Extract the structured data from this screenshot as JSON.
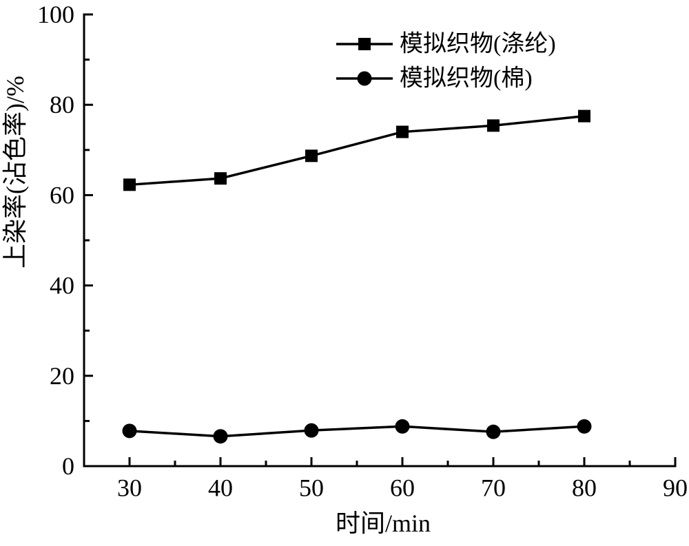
{
  "chart_data": {
    "type": "line",
    "title": "",
    "xlabel": "时间/min",
    "ylabel": "上染率(沾色率)/%",
    "xlim": [
      25,
      90
    ],
    "ylim": [
      0,
      100
    ],
    "x_major_ticks": [
      30,
      40,
      50,
      60,
      70,
      80,
      90
    ],
    "x_minor_step": 5,
    "y_major_ticks": [
      0,
      20,
      40,
      60,
      80,
      100
    ],
    "y_minor_step": 10,
    "grid": false,
    "legend_position": "top-center-inside",
    "line_color": "#000000",
    "background_color": "#ffffff",
    "x": [
      30,
      40,
      50,
      60,
      70,
      80
    ],
    "series": [
      {
        "name": "模拟织物(涤纶)",
        "marker": "square",
        "color": "#000000",
        "values": [
          62.3,
          63.7,
          68.7,
          74.0,
          75.4,
          77.5
        ]
      },
      {
        "name": "模拟织物(棉)",
        "marker": "circle",
        "color": "#000000",
        "values": [
          7.8,
          6.6,
          7.9,
          8.8,
          7.6,
          8.8
        ]
      }
    ]
  }
}
